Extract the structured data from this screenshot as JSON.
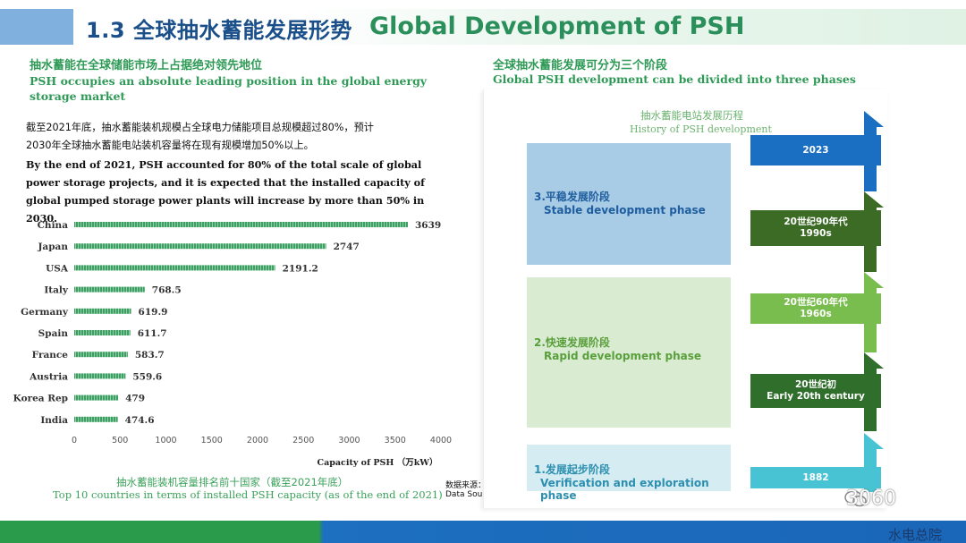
{
  "header": {
    "title_cn": "1.3 全球抽水蓄能发展形势",
    "title_en": "Global Development of PSH"
  },
  "left": {
    "heading_cn": "抽水蓄能在全球储能市场上占据绝对领先地位",
    "heading_en_1": "PSH occupies an absolute leading position in the global energy",
    "heading_en_2": "storage market",
    "para_cn_1": "截至2021年底，抽水蓄能装机规模占全球电力储能项目总规模超过80%，预计",
    "para_cn_2": "2030年全球抽水蓄能电站装机容量将在现有规模增加50%以上。",
    "para_en": "By the end of 2021, PSH accounted for 80% of the total scale of global power storage projects, and it is expected that the installed capacity of global pumped storage power plants will increase by more than 50% in 2030.",
    "caption_cn": "抽水蓄能装机容量排名前十国家（截至2021年底）",
    "caption_en": "Top 10 countries in terms of installed PSH capacity (as of the end of 2021)",
    "source_cn": "数据来源：IHA",
    "source_en": "Data Source: IHA"
  },
  "chart_data": {
    "type": "bar",
    "orientation": "horizontal",
    "categories": [
      "China",
      "Japan",
      "USA",
      "Italy",
      "Germany",
      "Spain",
      "France",
      "Austria",
      "Korea Rep",
      "India"
    ],
    "values": [
      3639,
      2747,
      2191.2,
      768.5,
      619.9,
      611.7,
      583.7,
      559.6,
      479,
      474.6
    ],
    "labels": [
      "3639",
      "2747",
      "2191.2",
      "768.5",
      "619.9",
      "611.7",
      "583.7",
      "559.6",
      "479",
      "474.6"
    ],
    "xticks": [
      0,
      500,
      1000,
      1500,
      2000,
      2500,
      3000,
      3500,
      4000
    ],
    "xlim": [
      0,
      4000
    ],
    "xlabel": "Capacity of PSH （万kW）",
    "bar_color": "#3f9e63"
  },
  "right": {
    "heading_cn": "全球抽水蓄能发展可分为三个阶段",
    "heading_en": "Global PSH development can be divided into three phases",
    "history_cn": "抽水蓄能电站发展历程",
    "history_en": "History of PSH development",
    "phases": [
      {
        "cn": "3.平稳发展阶段",
        "en": "Stable development phase",
        "bg": "#a8cbe6",
        "fg": "#1f5e9e"
      },
      {
        "cn": "2.快速发展阶段",
        "en": "Rapid development phase",
        "bg": "#d9ecd2",
        "fg": "#5a9f3c"
      },
      {
        "cn": "1.发展起步阶段",
        "en": "Verification and exploration phase",
        "bg": "#d5ecf3",
        "fg": "#2c8fb0"
      }
    ],
    "eras": [
      {
        "line1": "2023",
        "line2": "",
        "color": "#1b6fc2"
      },
      {
        "line1": "20世纪90年代",
        "line2": "1990s",
        "color": "#3b6b25"
      },
      {
        "line1": "20世纪60年代",
        "line2": "1960s",
        "color": "#79bd4e"
      },
      {
        "line1": "20世纪初",
        "line2": "Early 20th century",
        "color": "#2f6e2b"
      },
      {
        "line1": "1882",
        "line2": "",
        "color": "#48c3d3"
      }
    ]
  },
  "footer": {
    "watermark": "3060",
    "brand": "水电总院"
  }
}
